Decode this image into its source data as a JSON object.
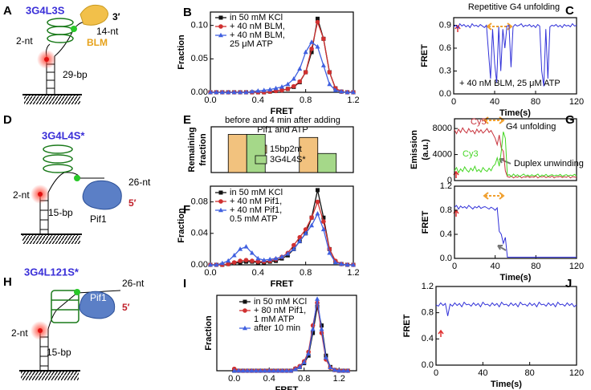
{
  "diagrams": [
    {
      "panel": "A",
      "name": "3G4L3S",
      "end": "3′",
      "overhang": "14-nt",
      "protein": "BLM",
      "gap": "2-nt",
      "duplex": "29-bp"
    },
    {
      "panel": "D",
      "name": "3G4L4S*",
      "gap": "2-nt",
      "overhang": "26-nt",
      "protein": "Pif1",
      "end": "5′",
      "duplex": "15-bp"
    },
    {
      "panel": "H",
      "name": "3G4L121S*",
      "overhang": "26-nt",
      "protein": "Pif1",
      "end": "5′",
      "gap": "2-nt",
      "duplex": "15-bp"
    }
  ],
  "chart_data": [
    {
      "type": "line",
      "panel": "B",
      "xlabel": "FRET",
      "ylabel": [
        "Fraction"
      ],
      "xlim": [
        0,
        1.2
      ],
      "ylim": [
        0,
        0.12
      ],
      "xticks": [
        {
          "value": 0,
          "label": "0.0"
        },
        0.4,
        0.8,
        1.2
      ],
      "yticks": [
        {
          "value": 0,
          "label": "0.00"
        },
        0.05,
        {
          "value": 0.1,
          "label": "0.10"
        }
      ],
      "x": [
        0,
        0.05,
        0.1,
        0.15,
        0.2,
        0.25,
        0.3,
        0.35,
        0.4,
        0.45,
        0.5,
        0.55,
        0.6,
        0.65,
        0.7,
        0.75,
        0.8,
        0.85,
        0.9,
        0.95,
        1.0,
        1.05,
        1.1,
        1.15,
        1.2
      ],
      "series": [
        {
          "name": "in 50 mM KCl",
          "color": "#111111",
          "marker": "square",
          "values": [
            0,
            0,
            0,
            0,
            0,
            0,
            0,
            0,
            0,
            0,
            0.001,
            0.002,
            0.003,
            0.005,
            0.008,
            0.015,
            0.03,
            0.06,
            0.11,
            0.08,
            0.03,
            0.006,
            0.001,
            0,
            0
          ]
        },
        {
          "name": "+ 40 nM BLM,",
          "color": "#d03030",
          "marker": "circle",
          "values": [
            0,
            0,
            0,
            0,
            0,
            0,
            0,
            0,
            0,
            0,
            0.001,
            0.002,
            0.003,
            0.005,
            0.009,
            0.016,
            0.03,
            0.065,
            0.105,
            0.08,
            0.03,
            0.006,
            0.001,
            0,
            0
          ]
        },
        {
          "name": "+ 40 nM BLM, 25 μM ATP",
          "color": "#4060e0",
          "marker": "triangle",
          "values": [
            0,
            0,
            0,
            0,
            0,
            0,
            0,
            0.001,
            0.002,
            0.003,
            0.004,
            0.006,
            0.008,
            0.012,
            0.02,
            0.035,
            0.06,
            0.075,
            0.068,
            0.04,
            0.012,
            0.003,
            0.001,
            0,
            0
          ]
        }
      ]
    },
    {
      "type": "line",
      "panel": "C",
      "title": [
        "Repetitive G4 unfolding"
      ],
      "annotations": [
        "+ 40 nM BLM, 25 μM ATP"
      ],
      "xlabel": "Time(s)",
      "ylabel": [
        "FRET"
      ],
      "xlim": [
        0,
        120
      ],
      "ylim": [
        0,
        1.0
      ],
      "xticks": [
        0,
        40,
        80,
        120
      ],
      "yticks": [
        {
          "value": 0,
          "label": "0.0"
        },
        0.3,
        0.6,
        0.9
      ],
      "x": [
        0,
        2,
        4,
        6,
        8,
        10,
        12,
        14,
        16,
        18,
        20,
        22,
        24,
        26,
        28,
        30,
        32,
        34,
        36,
        38,
        40,
        42,
        44,
        46,
        48,
        50,
        52,
        54,
        56,
        58,
        60,
        62,
        64,
        66,
        68,
        70,
        72,
        74,
        76,
        78,
        80,
        82,
        84,
        86,
        88,
        90,
        92,
        94,
        96,
        98,
        100,
        102,
        104,
        106,
        108,
        110,
        112,
        114,
        116,
        118,
        120
      ],
      "series": [
        {
          "color": "#3030d8",
          "values": [
            0.88,
            0.9,
            0.86,
            0.92,
            0.89,
            0.91,
            0.88,
            0.9,
            0.87,
            0.92,
            0.89,
            0.9,
            0.88,
            0.91,
            0.89,
            0.87,
            0.9,
            0.55,
            0.2,
            0.85,
            0.4,
            0.15,
            0.88,
            0.3,
            0.85,
            0.6,
            0.89,
            0.9,
            0.35,
            0.88,
            0.91,
            0.89,
            0.9,
            0.92,
            0.88,
            0.9,
            0.89,
            0.91,
            0.88,
            0.9,
            0.87,
            0.91,
            0.89,
            0.3,
            0.1,
            0.85,
            0.2,
            0.88,
            0.9,
            0.89,
            0.91,
            0.88,
            0.9,
            0.87,
            0.91,
            0.89,
            0.9,
            0.88,
            0.92,
            0.89,
            0.9
          ]
        }
      ]
    },
    {
      "type": "bar",
      "panel": "E",
      "title": [
        "before and 4 min after adding",
        "Pif1 and ATP"
      ],
      "ylabel": [
        "Remaining",
        "fraction"
      ],
      "ylim": [
        0,
        1.2
      ],
      "categories": [
        null,
        null
      ],
      "series": [
        {
          "name": "15bp2nt",
          "color": "#f2c27e",
          "values": [
            1.0,
            0.92
          ]
        },
        {
          "name": "3G4L4S*",
          "color": "#a5d889",
          "values": [
            1.0,
            0.5
          ]
        }
      ]
    },
    {
      "type": "line",
      "panel": "F",
      "xlabel": "FRET",
      "ylabel": [
        "Fraction"
      ],
      "xlim": [
        0,
        1.2
      ],
      "ylim": [
        0,
        0.1
      ],
      "xticks": [
        {
          "value": 0,
          "label": "0.0"
        },
        0.4,
        0.8,
        1.2
      ],
      "yticks": [
        {
          "value": 0,
          "label": "0.00"
        },
        0.04,
        0.08
      ],
      "x": [
        0,
        0.05,
        0.1,
        0.15,
        0.2,
        0.25,
        0.3,
        0.35,
        0.4,
        0.45,
        0.5,
        0.55,
        0.6,
        0.65,
        0.7,
        0.75,
        0.8,
        0.85,
        0.9,
        0.95,
        1.0,
        1.05,
        1.1,
        1.15,
        1.2
      ],
      "series": [
        {
          "name": "in 50 mM KCl",
          "color": "#111111",
          "marker": "square",
          "values": [
            0,
            0,
            0,
            0.001,
            0.002,
            0.003,
            0.004,
            0.004,
            0.003,
            0.003,
            0.004,
            0.005,
            0.008,
            0.012,
            0.02,
            0.03,
            0.04,
            0.06,
            0.095,
            0.06,
            0.02,
            0.004,
            0.001,
            0,
            0
          ]
        },
        {
          "name": "+ 40 nM Pif1,",
          "color": "#d03030",
          "marker": "circle",
          "values": [
            0,
            0,
            0,
            0.001,
            0.003,
            0.005,
            0.006,
            0.005,
            0.004,
            0.004,
            0.005,
            0.007,
            0.01,
            0.015,
            0.025,
            0.035,
            0.045,
            0.06,
            0.08,
            0.055,
            0.02,
            0.005,
            0.001,
            0,
            0
          ]
        },
        {
          "name": "+ 40 nM Pif1, 0.5 mM ATP",
          "color": "#4060e0",
          "marker": "triangle",
          "values": [
            0,
            0,
            0.002,
            0.005,
            0.012,
            0.02,
            0.023,
            0.015,
            0.008,
            0.006,
            0.007,
            0.008,
            0.01,
            0.014,
            0.02,
            0.03,
            0.04,
            0.05,
            0.065,
            0.045,
            0.015,
            0.003,
            0.001,
            0,
            0
          ]
        }
      ]
    },
    {
      "type": "line",
      "panel": "G",
      "annotations": [
        "G4 unfolding",
        "Duplex unwinding"
      ],
      "ylabel": [
        "Emission",
        "(a.u.)"
      ],
      "xlim": [
        0,
        120
      ],
      "ylim": [
        0,
        9500
      ],
      "yticks": [
        0,
        4000,
        8000
      ],
      "x": [
        0,
        2,
        4,
        6,
        8,
        10,
        12,
        14,
        16,
        18,
        20,
        22,
        24,
        26,
        28,
        30,
        32,
        34,
        36,
        38,
        40,
        42,
        44,
        46,
        48,
        50,
        52,
        54,
        56,
        58,
        60,
        62,
        64,
        66,
        68,
        70,
        72,
        74,
        76,
        78,
        80,
        82,
        84,
        86,
        88,
        90,
        92,
        94,
        96,
        98,
        100,
        102,
        104,
        106,
        108,
        110,
        112,
        114,
        116,
        118,
        120
      ],
      "series": [
        {
          "name": "Cy5",
          "color": "#c8323c",
          "values": [
            7800,
            7200,
            7900,
            7400,
            8100,
            7600,
            7300,
            8000,
            7500,
            7700,
            7200,
            7900,
            7400,
            7800,
            7300,
            7600,
            8000,
            7400,
            7700,
            7100,
            6500,
            5500,
            7000,
            5000,
            4500,
            1500,
            600,
            500,
            700,
            400,
            600,
            500,
            700,
            400,
            600,
            500,
            650,
            450,
            600,
            500,
            700,
            400,
            600,
            550,
            650,
            450,
            600,
            500,
            700,
            400,
            600,
            550,
            650,
            450,
            600,
            500,
            700,
            400,
            600,
            550,
            500
          ]
        },
        {
          "name": "Cy3",
          "color": "#44d622",
          "values": [
            1500,
            2000,
            1200,
            1800,
            1400,
            2100,
            1600,
            1300,
            1900,
            1500,
            2200,
            1400,
            1700,
            1300,
            2000,
            1600,
            1400,
            1900,
            1500,
            2200,
            2500,
            3500,
            2200,
            4500,
            7500,
            6500,
            800,
            900,
            600,
            1000,
            700,
            900,
            600,
            800,
            1000,
            700,
            850,
            650,
            900,
            700,
            800,
            1000,
            600,
            850,
            700,
            950,
            650,
            800,
            900,
            700,
            850,
            750,
            950,
            650,
            800,
            900,
            700,
            850,
            750,
            950,
            700
          ]
        }
      ]
    },
    {
      "type": "line",
      "xlabel": "Time(s)",
      "ylabel": [
        "FRET"
      ],
      "xlim": [
        0,
        120
      ],
      "ylim": [
        0,
        1.2
      ],
      "xticks": [
        0,
        40,
        80,
        120
      ],
      "yticks": [
        {
          "value": 0,
          "label": "0.0"
        },
        0.4,
        0.8,
        1.2
      ],
      "x": [
        0,
        2,
        4,
        6,
        8,
        10,
        12,
        14,
        16,
        18,
        20,
        22,
        24,
        26,
        28,
        30,
        32,
        34,
        36,
        38,
        40,
        42,
        44,
        46,
        48,
        50,
        52,
        54,
        56,
        58,
        60,
        62,
        64,
        66,
        68,
        70,
        72,
        74,
        76,
        78,
        80,
        82,
        84,
        86,
        88,
        90,
        92,
        94,
        96,
        98,
        100,
        102,
        104,
        106,
        108,
        110,
        112,
        114,
        116,
        118,
        120
      ],
      "series": [
        {
          "color": "#3030d8",
          "values": [
            0.85,
            0.88,
            0.82,
            0.87,
            0.84,
            0.86,
            0.83,
            0.88,
            0.85,
            0.82,
            0.86,
            0.84,
            0.87,
            0.83,
            0.85,
            0.86,
            0.84,
            0.82,
            0.85,
            0.83,
            0.8,
            0.84,
            0.45,
            0.4,
            0.25,
            0.35,
            0.02,
            0.02,
            0.02,
            0.02,
            0.02,
            0.02,
            0.02,
            0.02,
            0.02,
            0.02,
            0.02,
            0.02,
            0.02,
            0.02,
            0.02,
            0.02,
            0.02,
            0.02,
            0.02,
            0.02,
            0.02,
            0.02,
            0.02,
            0.02,
            0.02,
            0.02,
            0.02,
            0.02,
            0.02,
            0.02,
            0.02,
            0.02,
            0.02,
            0.02,
            0.02
          ]
        }
      ]
    },
    {
      "type": "line",
      "panel": "I",
      "xlabel": "FRET",
      "ylabel": [
        "Fraction"
      ],
      "xlim": [
        -0.2,
        1.4
      ],
      "ylim": [
        0,
        0.2
      ],
      "xticks": [
        {
          "value": 0,
          "label": "0.0"
        },
        0.4,
        0.8,
        1.2
      ],
      "x": [
        0,
        0.05,
        0.1,
        0.15,
        0.2,
        0.25,
        0.3,
        0.35,
        0.4,
        0.45,
        0.5,
        0.55,
        0.6,
        0.65,
        0.7,
        0.75,
        0.8,
        0.85,
        0.9,
        0.95,
        1.0,
        1.05,
        1.1,
        1.15,
        1.2,
        1.25,
        1.3
      ],
      "series": [
        {
          "name": "in 50 mM KCl",
          "color": "#111111",
          "marker": "square",
          "values": [
            0,
            0,
            0,
            0,
            0,
            0,
            0,
            0,
            0,
            0,
            0,
            0,
            0,
            0,
            0.005,
            0.01,
            0.02,
            0.04,
            0.1,
            0.17,
            0.12,
            0.04,
            0.01,
            0.002,
            0,
            0,
            0
          ]
        },
        {
          "name": "+ 80 nM Pif1, 1 mM ATP",
          "color": "#d03030",
          "marker": "circle",
          "values": [
            0.005,
            0,
            0,
            0,
            0,
            0,
            0,
            0,
            0,
            0,
            0,
            0,
            0,
            0,
            0.006,
            0.012,
            0.025,
            0.05,
            0.12,
            0.18,
            0.1,
            0.03,
            0.008,
            0.002,
            0,
            0,
            0
          ]
        },
        {
          "name": "after 10 min",
          "color": "#4060e0",
          "marker": "triangle",
          "values": [
            0,
            0,
            0,
            0,
            0,
            0,
            0,
            0,
            0,
            0,
            0,
            0,
            0,
            0,
            0.004,
            0.01,
            0.022,
            0.045,
            0.11,
            0.19,
            0.11,
            0.035,
            0.009,
            0.002,
            0,
            0,
            0
          ]
        }
      ]
    },
    {
      "type": "line",
      "panel": "J",
      "xlabel": "Time(s)",
      "ylabel": [
        "FRET"
      ],
      "xlim": [
        0,
        120
      ],
      "ylim": [
        0,
        1.2
      ],
      "xticks": [
        0,
        40,
        80,
        120
      ],
      "yticks": [
        {
          "value": 0,
          "label": "0.0"
        },
        0.4,
        0.8,
        1.2
      ],
      "x": [
        0,
        2,
        4,
        6,
        8,
        10,
        12,
        14,
        16,
        18,
        20,
        22,
        24,
        26,
        28,
        30,
        32,
        34,
        36,
        38,
        40,
        42,
        44,
        46,
        48,
        50,
        52,
        54,
        56,
        58,
        60,
        62,
        64,
        66,
        68,
        70,
        72,
        74,
        76,
        78,
        80,
        82,
        84,
        86,
        88,
        90,
        92,
        94,
        96,
        98,
        100,
        102,
        104,
        106,
        108,
        110,
        112,
        114,
        116,
        118,
        120
      ],
      "series": [
        {
          "color": "#3030d8",
          "values": [
            0.92,
            0.9,
            0.95,
            0.91,
            0.94,
            0.75,
            0.93,
            0.9,
            0.95,
            0.91,
            0.94,
            0.89,
            0.96,
            0.92,
            0.93,
            0.9,
            0.95,
            0.91,
            0.94,
            0.89,
            0.96,
            0.92,
            0.93,
            0.9,
            0.95,
            0.91,
            0.94,
            0.89,
            0.96,
            0.92,
            0.93,
            0.9,
            0.95,
            0.91,
            0.94,
            0.89,
            0.96,
            0.92,
            0.93,
            0.9,
            0.95,
            0.91,
            0.94,
            0.89,
            0.96,
            0.92,
            0.93,
            0.9,
            0.95,
            0.91,
            0.94,
            0.89,
            0.96,
            0.92,
            0.93,
            0.9,
            0.95,
            0.91,
            0.94,
            0.89,
            0.92
          ]
        }
      ]
    }
  ]
}
